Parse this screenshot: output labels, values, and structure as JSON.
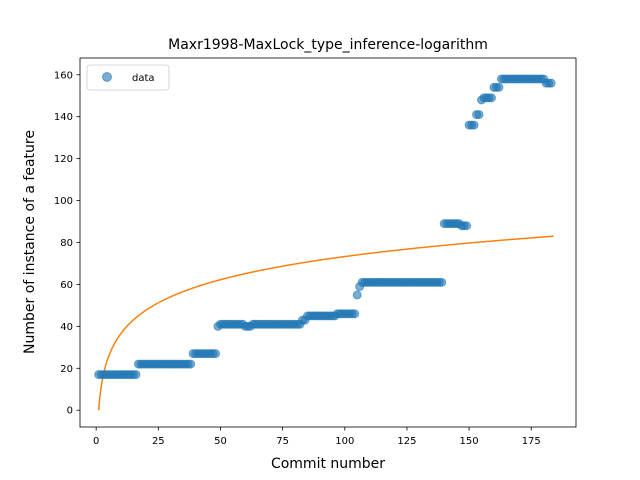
{
  "chart_data": {
    "type": "scatter",
    "title": "Maxr1998-MaxLock_type_inference-logarithm",
    "xlabel": "Commit number",
    "ylabel": "Number of instance of a feature",
    "xlim": [
      -6.5,
      193
    ],
    "ylim": [
      -8,
      168
    ],
    "xticks": [
      0,
      25,
      50,
      75,
      100,
      125,
      150,
      175
    ],
    "yticks": [
      0,
      20,
      40,
      60,
      80,
      100,
      120,
      140,
      160
    ],
    "grid": false,
    "legend": {
      "position": "top-left",
      "entries": [
        "data"
      ]
    },
    "colors": {
      "data": "#1f77b4",
      "fit": "#ff7f0e"
    },
    "series": [
      {
        "name": "data",
        "kind": "scatter",
        "points": [
          [
            1,
            17
          ],
          [
            2,
            17
          ],
          [
            3,
            17
          ],
          [
            4,
            17
          ],
          [
            5,
            17
          ],
          [
            6,
            17
          ],
          [
            7,
            17
          ],
          [
            8,
            17
          ],
          [
            9,
            17
          ],
          [
            10,
            17
          ],
          [
            11,
            17
          ],
          [
            12,
            17
          ],
          [
            13,
            17
          ],
          [
            14,
            17
          ],
          [
            15,
            17
          ],
          [
            16,
            17
          ],
          [
            17,
            22
          ],
          [
            18,
            22
          ],
          [
            19,
            22
          ],
          [
            20,
            22
          ],
          [
            21,
            22
          ],
          [
            22,
            22
          ],
          [
            23,
            22
          ],
          [
            24,
            22
          ],
          [
            25,
            22
          ],
          [
            26,
            22
          ],
          [
            27,
            22
          ],
          [
            28,
            22
          ],
          [
            29,
            22
          ],
          [
            30,
            22
          ],
          [
            31,
            22
          ],
          [
            32,
            22
          ],
          [
            33,
            22
          ],
          [
            34,
            22
          ],
          [
            35,
            22
          ],
          [
            36,
            22
          ],
          [
            37,
            22
          ],
          [
            38,
            22
          ],
          [
            39,
            27
          ],
          [
            40,
            27
          ],
          [
            41,
            27
          ],
          [
            42,
            27
          ],
          [
            43,
            27
          ],
          [
            44,
            27
          ],
          [
            45,
            27
          ],
          [
            46,
            27
          ],
          [
            47,
            27
          ],
          [
            48,
            27
          ],
          [
            49,
            40
          ],
          [
            50,
            41
          ],
          [
            51,
            41
          ],
          [
            52,
            41
          ],
          [
            53,
            41
          ],
          [
            54,
            41
          ],
          [
            55,
            41
          ],
          [
            56,
            41
          ],
          [
            57,
            41
          ],
          [
            58,
            41
          ],
          [
            59,
            41
          ],
          [
            60,
            40
          ],
          [
            61,
            40
          ],
          [
            62,
            40
          ],
          [
            63,
            41
          ],
          [
            64,
            41
          ],
          [
            65,
            41
          ],
          [
            66,
            41
          ],
          [
            67,
            41
          ],
          [
            68,
            41
          ],
          [
            69,
            41
          ],
          [
            70,
            41
          ],
          [
            71,
            41
          ],
          [
            72,
            41
          ],
          [
            73,
            41
          ],
          [
            74,
            41
          ],
          [
            75,
            41
          ],
          [
            76,
            41
          ],
          [
            77,
            41
          ],
          [
            78,
            41
          ],
          [
            79,
            41
          ],
          [
            80,
            41
          ],
          [
            81,
            41
          ],
          [
            82,
            41
          ],
          [
            83,
            43
          ],
          [
            84,
            43
          ],
          [
            85,
            45
          ],
          [
            86,
            45
          ],
          [
            87,
            45
          ],
          [
            88,
            45
          ],
          [
            89,
            45
          ],
          [
            90,
            45
          ],
          [
            91,
            45
          ],
          [
            92,
            45
          ],
          [
            93,
            45
          ],
          [
            94,
            45
          ],
          [
            95,
            45
          ],
          [
            96,
            45
          ],
          [
            97,
            46
          ],
          [
            98,
            46
          ],
          [
            99,
            46
          ],
          [
            100,
            46
          ],
          [
            101,
            46
          ],
          [
            102,
            46
          ],
          [
            103,
            46
          ],
          [
            104,
            46
          ],
          [
            105,
            55
          ],
          [
            106,
            59
          ],
          [
            107,
            61
          ],
          [
            108,
            61
          ],
          [
            109,
            61
          ],
          [
            110,
            61
          ],
          [
            111,
            61
          ],
          [
            112,
            61
          ],
          [
            113,
            61
          ],
          [
            114,
            61
          ],
          [
            115,
            61
          ],
          [
            116,
            61
          ],
          [
            117,
            61
          ],
          [
            118,
            61
          ],
          [
            119,
            61
          ],
          [
            120,
            61
          ],
          [
            121,
            61
          ],
          [
            122,
            61
          ],
          [
            123,
            61
          ],
          [
            124,
            61
          ],
          [
            125,
            61
          ],
          [
            126,
            61
          ],
          [
            127,
            61
          ],
          [
            128,
            61
          ],
          [
            129,
            61
          ],
          [
            130,
            61
          ],
          [
            131,
            61
          ],
          [
            132,
            61
          ],
          [
            133,
            61
          ],
          [
            134,
            61
          ],
          [
            135,
            61
          ],
          [
            136,
            61
          ],
          [
            137,
            61
          ],
          [
            138,
            61
          ],
          [
            139,
            61
          ],
          [
            140,
            89
          ],
          [
            141,
            89
          ],
          [
            142,
            89
          ],
          [
            143,
            89
          ],
          [
            144,
            89
          ],
          [
            145,
            89
          ],
          [
            146,
            89
          ],
          [
            147,
            88
          ],
          [
            148,
            88
          ],
          [
            149,
            88
          ],
          [
            150,
            136
          ],
          [
            151,
            136
          ],
          [
            152,
            136
          ],
          [
            153,
            141
          ],
          [
            154,
            141
          ],
          [
            155,
            148
          ],
          [
            156,
            149
          ],
          [
            157,
            149
          ],
          [
            158,
            149
          ],
          [
            159,
            149
          ],
          [
            160,
            154
          ],
          [
            161,
            154
          ],
          [
            162,
            154
          ],
          [
            163,
            158
          ],
          [
            164,
            158
          ],
          [
            165,
            158
          ],
          [
            166,
            158
          ],
          [
            167,
            158
          ],
          [
            168,
            158
          ],
          [
            169,
            158
          ],
          [
            170,
            158
          ],
          [
            171,
            158
          ],
          [
            172,
            158
          ],
          [
            173,
            158
          ],
          [
            174,
            158
          ],
          [
            175,
            158
          ],
          [
            176,
            158
          ],
          [
            177,
            158
          ],
          [
            178,
            158
          ],
          [
            179,
            158
          ],
          [
            180,
            158
          ],
          [
            181,
            156
          ],
          [
            182,
            156
          ],
          [
            183,
            156
          ]
        ]
      },
      {
        "kind": "line",
        "model": "logarithmic",
        "x_range": [
          1,
          184
        ],
        "y_range": [
          0,
          83
        ]
      }
    ]
  }
}
